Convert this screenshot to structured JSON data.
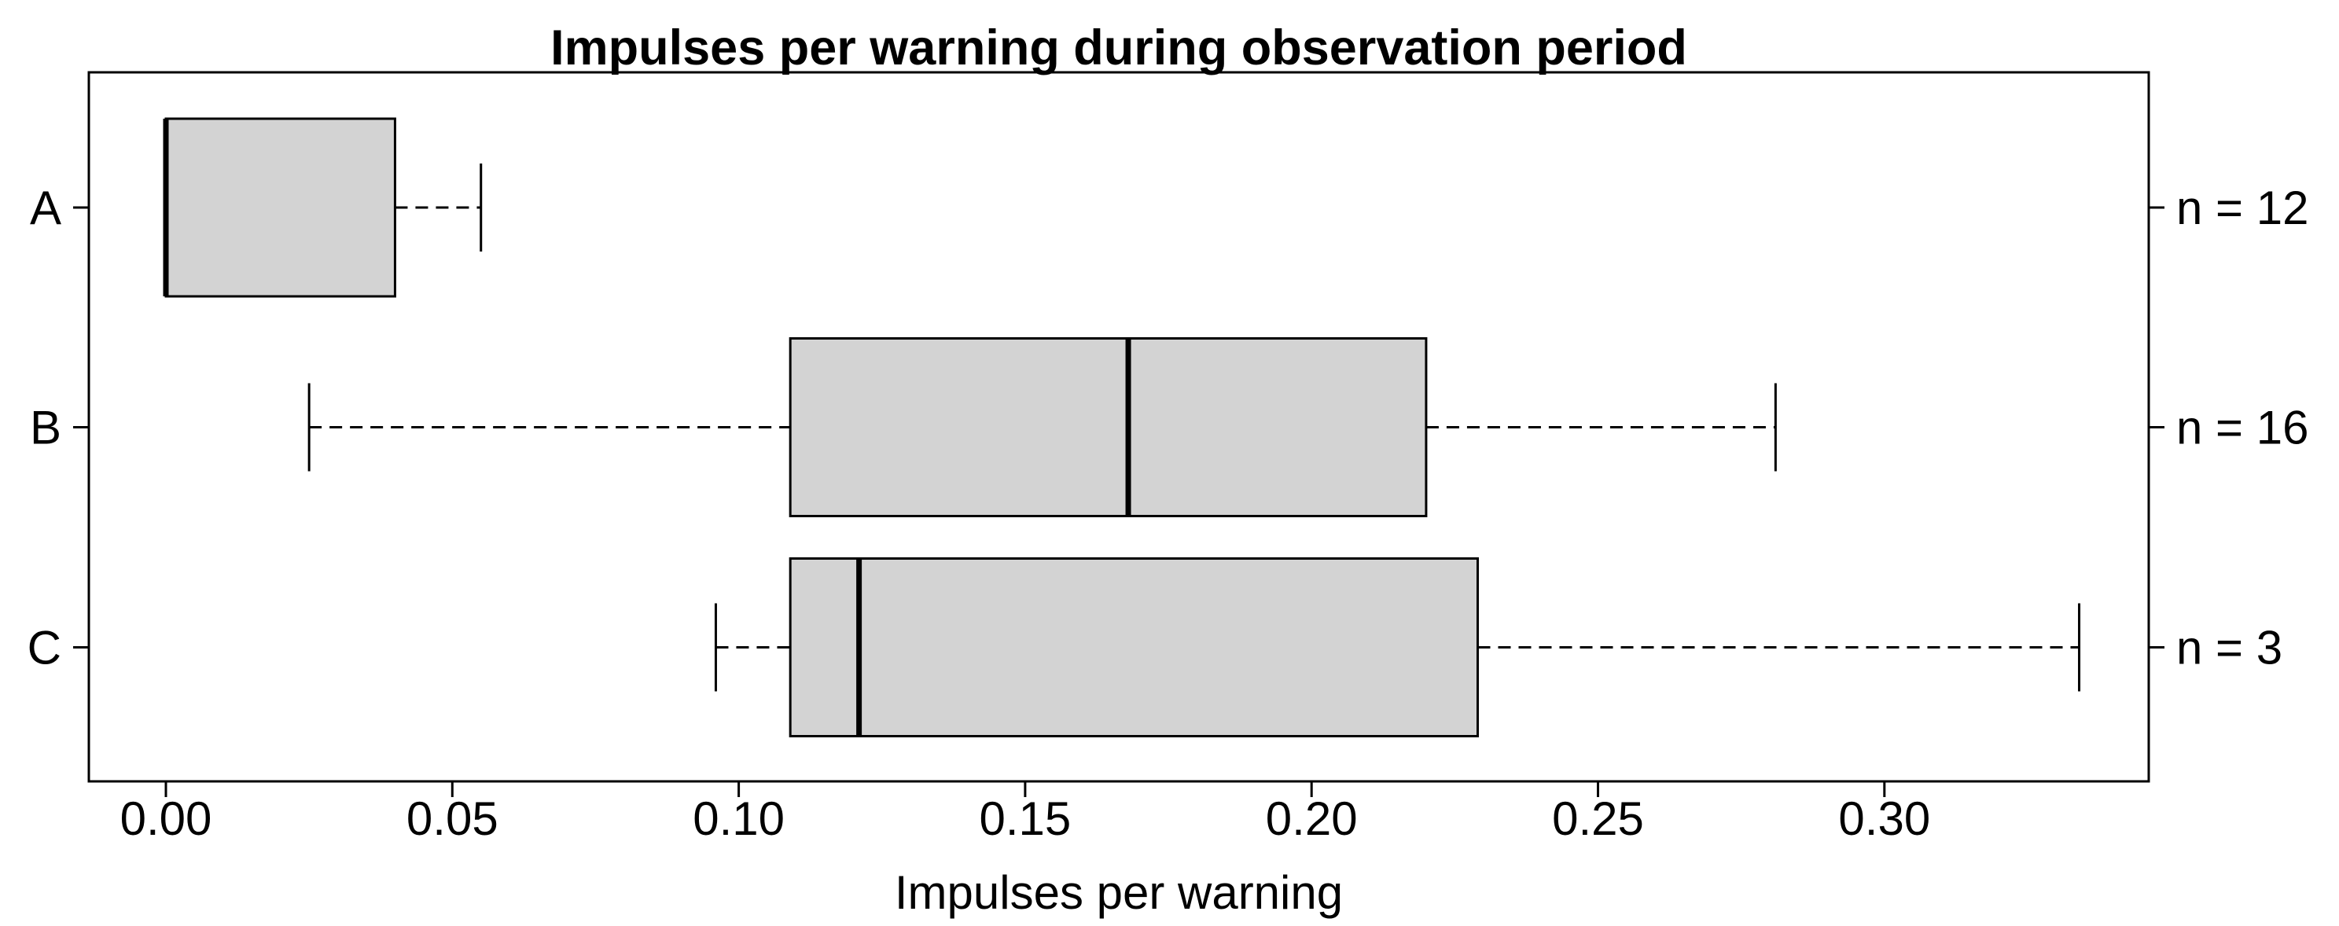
{
  "chart_data": {
    "type": "boxplot",
    "orientation": "horizontal",
    "title": "Impulses per warning during observation period",
    "xlabel": "Impulses per warning",
    "x_ticks": [
      0.0,
      0.05,
      0.1,
      0.15,
      0.2,
      0.25,
      0.3
    ],
    "x_tick_labels": [
      "0.00",
      "0.05",
      "0.10",
      "0.15",
      "0.20",
      "0.25",
      "0.30"
    ],
    "xlim": [
      -0.013,
      0.347
    ],
    "grid": false,
    "legend": "none",
    "groups": [
      {
        "label": "A",
        "n": 12,
        "n_label": "n = 12",
        "whisker_low": 0.0,
        "q1": 0.0,
        "median": 0.0,
        "q3": 0.04,
        "whisker_high": 0.055
      },
      {
        "label": "B",
        "n": 16,
        "n_label": "n = 16",
        "whisker_low": 0.025,
        "q1": 0.109,
        "median": 0.168,
        "q3": 0.22,
        "whisker_high": 0.281
      },
      {
        "label": "C",
        "n": 3,
        "n_label": "n = 3",
        "whisker_low": 0.096,
        "q1": 0.109,
        "median": 0.121,
        "q3": 0.229,
        "whisker_high": 0.334
      }
    ],
    "colors": {
      "box_fill": "#D3D3D3",
      "line": "#000000",
      "background": "#FFFFFF",
      "text": "#000000"
    }
  }
}
